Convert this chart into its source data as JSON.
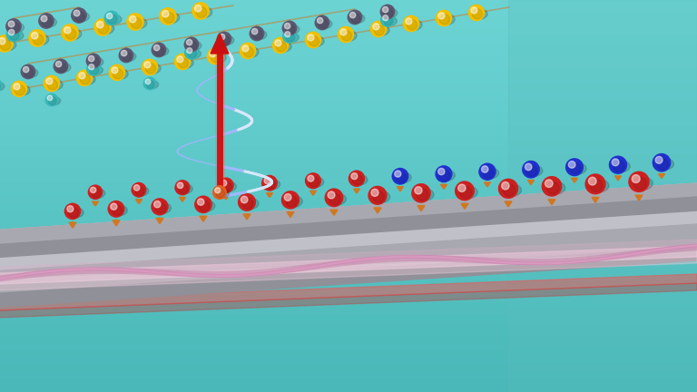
{
  "bg_teal_light": "#6dd4d4",
  "bg_teal_dark": "#4ab8b8",
  "bg_right": "#7de0e0",
  "plat_top": "#c0c0c8",
  "plat_side": "#a8a8b0",
  "plat_edge_dark": "#909098",
  "plat_bottom_face": "#b8b8c0",
  "atom_yellow": "#f0c000",
  "atom_yellow_hi": "#ffd840",
  "atom_slate": "#5a5870",
  "atom_slate_hi": "#7a78a0",
  "atom_teal": "#38b8b8",
  "atom_teal_hi": "#60d8d8",
  "atom_red": "#cc2020",
  "atom_blue": "#2030cc",
  "atom_orange_conn": "#d07820",
  "arrow_red": "#cc1010",
  "spiral_blue": "#a0b8ff",
  "spiral_white": "#d8e8ff",
  "wave_pink": "#e090c0",
  "wave_lavender": "#c0a0e0",
  "wave_red_glow": "#ff6060",
  "wave_blue_glow": "#6060e0",
  "current_pink_strip": "#e8a0b0",
  "figsize": [
    7.68,
    4.32
  ],
  "dpi": 100
}
